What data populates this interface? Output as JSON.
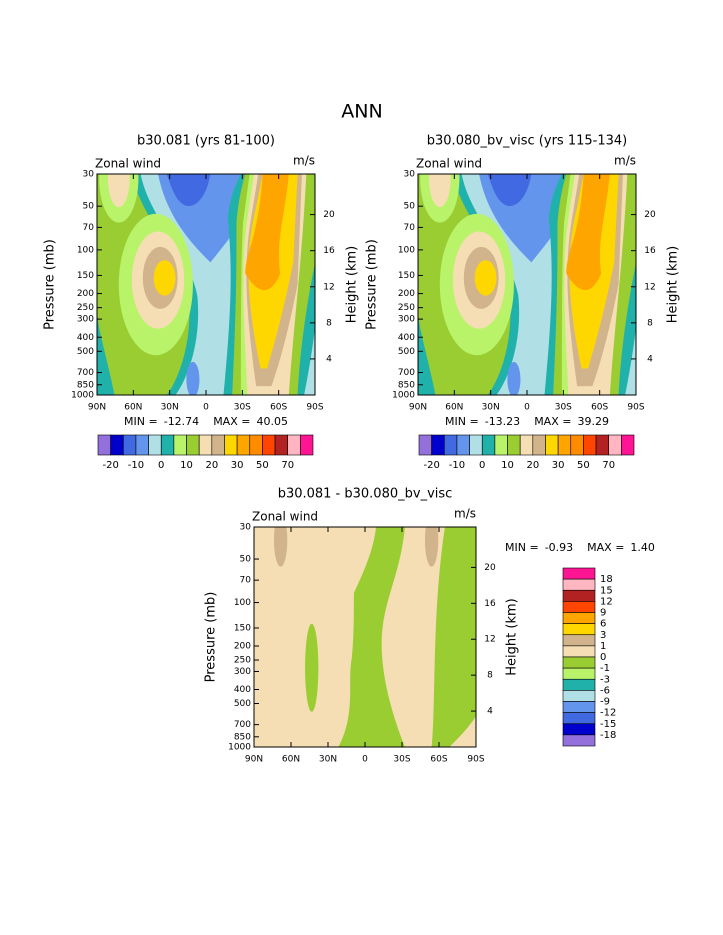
{
  "title": "ANN",
  "chart_data": [
    {
      "type": "contour",
      "title": "b30.081 (yrs 81-100)",
      "left_string": "Zonal wind",
      "right_string": "m/s",
      "ylabel": "Pressure (mb)",
      "y2label": "Height (km)",
      "xlim": [
        90,
        -90
      ],
      "xticks": [
        {
          "value": 90,
          "label": "90N"
        },
        {
          "value": 60,
          "label": "60N"
        },
        {
          "value": 30,
          "label": "30N"
        },
        0,
        {
          "value": -30,
          "label": "30S"
        },
        {
          "value": -60,
          "label": "60S"
        },
        {
          "value": -90,
          "label": "90S"
        }
      ],
      "ylim": [
        1000,
        30
      ],
      "ylog": true,
      "yticks": [
        30,
        50,
        70,
        100,
        150,
        200,
        250,
        300,
        400,
        500,
        700,
        850,
        1000
      ],
      "y2lim": [
        0,
        24.5
      ],
      "y2ticks": [
        4,
        8,
        12,
        16,
        20
      ],
      "stats": [
        {
          "label": "MIN =",
          "value": -12.74
        },
        {
          "label": "MAX =",
          "value": 40.05
        }
      ],
      "colorbar": {
        "orientation": "horizontal",
        "colors": [
          "#9370db",
          "#0000cd",
          "#4169e1",
          "#6495ed",
          "#b0e0e6",
          "#20b2aa",
          "#b9f36a",
          "#9acd32",
          "#f5deb3",
          "#d2b48c",
          "#ffd700",
          "#ffa500",
          "#ff8c00",
          "#ff4500",
          "#b22222",
          "#ffb6c1",
          "#ff1493"
        ],
        "labels": [
          -20,
          -10,
          0,
          10,
          20,
          30,
          50,
          70
        ]
      }
    },
    {
      "type": "contour",
      "title": "b30.080_bv_visc (yrs 115-134)",
      "left_string": "Zonal wind",
      "right_string": "m/s",
      "ylabel": "Pressure (mb)",
      "y2label": "Height (km)",
      "xlim": [
        90,
        -90
      ],
      "xticks": [
        {
          "value": 90,
          "label": "90N"
        },
        {
          "value": 60,
          "label": "60N"
        },
        {
          "value": 30,
          "label": "30N"
        },
        0,
        {
          "value": -30,
          "label": "30S"
        },
        {
          "value": -60,
          "label": "60S"
        },
        {
          "value": -90,
          "label": "90S"
        }
      ],
      "ylim": [
        1000,
        30
      ],
      "ylog": true,
      "yticks": [
        30,
        50,
        70,
        100,
        150,
        200,
        250,
        300,
        400,
        500,
        700,
        850,
        1000
      ],
      "y2lim": [
        0,
        24.5
      ],
      "y2ticks": [
        4,
        8,
        12,
        16,
        20
      ],
      "stats": [
        {
          "label": "MIN =",
          "value": -13.23
        },
        {
          "label": "MAX =",
          "value": 39.29
        }
      ],
      "colorbar": {
        "orientation": "horizontal",
        "colors": [
          "#9370db",
          "#0000cd",
          "#4169e1",
          "#6495ed",
          "#b0e0e6",
          "#20b2aa",
          "#b9f36a",
          "#9acd32",
          "#f5deb3",
          "#d2b48c",
          "#ffd700",
          "#ffa500",
          "#ff8c00",
          "#ff4500",
          "#b22222",
          "#ffb6c1",
          "#ff1493"
        ],
        "labels": [
          -20,
          -10,
          0,
          10,
          20,
          30,
          50,
          70
        ]
      }
    },
    {
      "type": "contour",
      "title": "b30.081 - b30.080_bv_visc",
      "left_string": "Zonal wind",
      "right_string": "m/s",
      "ylabel": "Pressure (mb)",
      "y2label": "Height (km)",
      "xlim": [
        90,
        -90
      ],
      "xticks": [
        {
          "value": 90,
          "label": "90N"
        },
        {
          "value": 60,
          "label": "60N"
        },
        {
          "value": 30,
          "label": "30N"
        },
        0,
        {
          "value": -30,
          "label": "30S"
        },
        {
          "value": -60,
          "label": "60S"
        },
        {
          "value": -90,
          "label": "90S"
        }
      ],
      "ylim": [
        1000,
        30
      ],
      "ylog": true,
      "yticks": [
        30,
        50,
        70,
        100,
        150,
        200,
        250,
        300,
        400,
        500,
        700,
        850,
        1000
      ],
      "y2lim": [
        0,
        24.5
      ],
      "y2ticks": [
        4,
        8,
        12,
        16,
        20
      ],
      "stats": [
        {
          "label": "MIN =",
          "value": -0.93
        },
        {
          "label": "MAX =",
          "value": {
            "value": 1.4,
            "label": "1.40"
          }
        }
      ],
      "colorbar": {
        "orientation": "vertical",
        "colors": [
          "#ff1493",
          "#ffb6c1",
          "#b22222",
          "#ff4500",
          "#ffa500",
          "#ffd700",
          "#d2b48c",
          "#f5deb3",
          "#9acd32",
          "#b9f36a",
          "#20b2aa",
          "#b0e0e6",
          "#6495ed",
          "#4169e1",
          "#0000cd",
          "#9370db"
        ],
        "labels": [
          18,
          15,
          12,
          9,
          6,
          3,
          1,
          0,
          -1,
          -3,
          -6,
          -9,
          -12,
          -15,
          -18
        ]
      }
    }
  ]
}
